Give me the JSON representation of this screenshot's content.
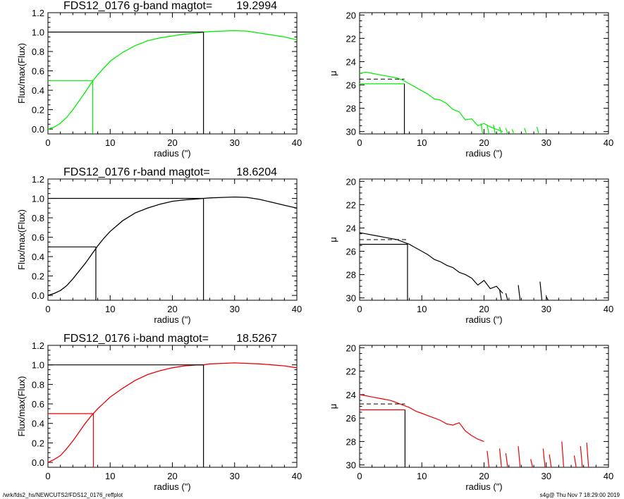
{
  "footer": {
    "path": "/wrk/fds2_hs/NEWCUTS2/FDS12_0176_reffplot",
    "stamp": "s4g@  Thu Nov  7 18:29:00 2019"
  },
  "colors": {
    "g": "#00ee00",
    "r": "#000000",
    "i": "#ee0000",
    "axis": "#000000"
  },
  "chart_data": [
    {
      "type": "line",
      "band": "g",
      "title_left": "FDS12_0176 g-band  magtot=",
      "title_value": "19.2994",
      "xlabel": "radius (\")",
      "ylabel": "Flux/max(Flux)",
      "xlim": [
        0,
        40
      ],
      "ylim": [
        -0.05,
        1.2
      ],
      "xticks": [
        0,
        10,
        20,
        30,
        40
      ],
      "yticks": [
        0.0,
        0.2,
        0.4,
        0.6,
        0.8,
        1.0,
        1.2
      ],
      "ytick_labels": [
        "0.0",
        "0.2",
        "0.4",
        "0.6",
        "0.8",
        "1.0",
        "1.2"
      ],
      "r_half": 7.2,
      "r_tot": 25.0,
      "curve": {
        "x": [
          0,
          1,
          2,
          3,
          4,
          5,
          6,
          7,
          8,
          9,
          10,
          12,
          14,
          16,
          18,
          20,
          22,
          24,
          25,
          26,
          28,
          30,
          32,
          34,
          36,
          38,
          40
        ],
        "y": [
          0.0,
          0.02,
          0.06,
          0.12,
          0.2,
          0.29,
          0.38,
          0.48,
          0.56,
          0.63,
          0.7,
          0.79,
          0.86,
          0.91,
          0.94,
          0.96,
          0.98,
          0.99,
          1.0,
          1.005,
          1.01,
          1.015,
          1.01,
          0.99,
          0.97,
          0.95,
          0.92
        ]
      }
    },
    {
      "type": "line",
      "band": "g",
      "xlabel": "radius (\")",
      "ylabel": "μ",
      "xlim": [
        0,
        40
      ],
      "ylim": [
        30.2,
        19.8
      ],
      "xticks": [
        0,
        10,
        20,
        30,
        40
      ],
      "yticks": [
        20,
        22,
        24,
        26,
        28,
        30
      ],
      "r_half": 7.2,
      "mu_half": 25.9,
      "mu_mean": 25.5,
      "profile": {
        "x": [
          0,
          1,
          2,
          3,
          4,
          5,
          6,
          7,
          8,
          9,
          10,
          11,
          12,
          13,
          14,
          15,
          16,
          17,
          18,
          19,
          20,
          21,
          22,
          23
        ],
        "y": [
          25.0,
          24.9,
          25.0,
          25.1,
          25.2,
          25.3,
          25.4,
          25.6,
          25.9,
          26.2,
          26.5,
          26.8,
          27.2,
          27.3,
          27.6,
          28.1,
          28.3,
          29.0,
          28.9,
          29.5,
          29.3,
          29.6,
          29.8,
          30.0
        ]
      },
      "spikes": {
        "x": [
          19.5,
          20.5,
          21.5,
          22.5,
          23.5,
          24.5,
          26.5,
          28.5
        ],
        "y": [
          29.3,
          29.5,
          29.4,
          29.6,
          29.7,
          29.8,
          29.7,
          29.6
        ]
      }
    },
    {
      "type": "line",
      "band": "r",
      "title_left": "FDS12_0176 r-band  magtot=",
      "title_value": "18.6204",
      "xlabel": "radius (\")",
      "ylabel": "Flux/max(Flux)",
      "xlim": [
        0,
        40
      ],
      "ylim": [
        -0.05,
        1.2
      ],
      "xticks": [
        0,
        10,
        20,
        30,
        40
      ],
      "yticks": [
        0.0,
        0.2,
        0.4,
        0.6,
        0.8,
        1.0,
        1.2
      ],
      "ytick_labels": [
        "0.0",
        "0.2",
        "0.4",
        "0.6",
        "0.8",
        "1.0",
        "1.2"
      ],
      "r_half": 7.7,
      "r_tot": 25.0,
      "curve": {
        "x": [
          0,
          1,
          2,
          3,
          4,
          5,
          6,
          7,
          8,
          9,
          10,
          12,
          14,
          16,
          18,
          20,
          22,
          24,
          25,
          26,
          28,
          30,
          32,
          34,
          36,
          38,
          40
        ],
        "y": [
          0.0,
          0.02,
          0.05,
          0.1,
          0.17,
          0.25,
          0.33,
          0.42,
          0.51,
          0.59,
          0.66,
          0.77,
          0.85,
          0.9,
          0.94,
          0.97,
          0.985,
          0.995,
          1.0,
          1.005,
          1.01,
          1.015,
          1.01,
          0.99,
          0.96,
          0.93,
          0.9
        ]
      }
    },
    {
      "type": "line",
      "band": "r",
      "xlabel": "radius (\")",
      "ylabel": "μ",
      "xlim": [
        0,
        40
      ],
      "ylim": [
        30.2,
        19.8
      ],
      "xticks": [
        0,
        10,
        20,
        30,
        40
      ],
      "yticks": [
        20,
        22,
        24,
        26,
        28,
        30
      ],
      "r_half": 7.7,
      "mu_half": 25.4,
      "mu_mean": 25.0,
      "profile": {
        "x": [
          0,
          1,
          2,
          3,
          4,
          5,
          6,
          7,
          8,
          9,
          10,
          11,
          12,
          13,
          14,
          15,
          16,
          17,
          18,
          19,
          20,
          21,
          22,
          23
        ],
        "y": [
          24.4,
          24.5,
          24.6,
          24.7,
          24.8,
          24.9,
          25.0,
          25.2,
          25.4,
          25.7,
          26.0,
          26.3,
          26.7,
          26.9,
          27.2,
          27.4,
          27.8,
          28.0,
          28.3,
          28.9,
          28.5,
          29.2,
          29.0,
          29.6
        ]
      },
      "spikes": {
        "x": [
          22.5,
          23.5,
          25.5,
          29.0,
          30.0
        ],
        "y": [
          29.3,
          29.6,
          28.9,
          28.6,
          29.9
        ]
      }
    },
    {
      "type": "line",
      "band": "i",
      "title_left": "FDS12_0176 i-band  magtot=",
      "title_value": "18.5267",
      "xlabel": "radius (\")",
      "ylabel": "Flux/max(Flux)",
      "xlim": [
        0,
        40
      ],
      "ylim": [
        -0.05,
        1.2
      ],
      "xticks": [
        0,
        10,
        20,
        30,
        40
      ],
      "yticks": [
        0.0,
        0.2,
        0.4,
        0.6,
        0.8,
        1.0,
        1.2
      ],
      "ytick_labels": [
        "0.0",
        "0.2",
        "0.4",
        "0.6",
        "0.8",
        "1.0",
        "1.2"
      ],
      "r_half": 7.3,
      "r_tot": 25.0,
      "curve": {
        "x": [
          0,
          1,
          2,
          3,
          4,
          5,
          6,
          7,
          8,
          9,
          10,
          12,
          14,
          16,
          18,
          20,
          22,
          24,
          25,
          26,
          28,
          30,
          32,
          34,
          36,
          38,
          40
        ],
        "y": [
          0.0,
          0.03,
          0.07,
          0.14,
          0.22,
          0.31,
          0.4,
          0.48,
          0.55,
          0.61,
          0.67,
          0.76,
          0.84,
          0.9,
          0.94,
          0.97,
          0.99,
          1.0,
          1.0,
          1.01,
          1.015,
          1.02,
          1.015,
          1.01,
          1.0,
          0.99,
          0.97
        ]
      }
    },
    {
      "type": "line",
      "band": "i",
      "xlabel": "radius (\")",
      "ylabel": "μ",
      "xlim": [
        0,
        40
      ],
      "ylim": [
        30.2,
        19.8
      ],
      "xticks": [
        0,
        10,
        20,
        30,
        40
      ],
      "yticks": [
        20,
        22,
        24,
        26,
        28,
        30
      ],
      "r_half": 7.3,
      "mu_half": 25.3,
      "mu_mean": 24.8,
      "profile": {
        "x": [
          0,
          1,
          2,
          3,
          4,
          5,
          6,
          7,
          8,
          9,
          10,
          11,
          12,
          13,
          14,
          15,
          16,
          17,
          18,
          19,
          20
        ],
        "y": [
          24.0,
          24.1,
          24.2,
          24.3,
          24.4,
          24.5,
          24.7,
          24.9,
          25.1,
          25.4,
          25.6,
          25.8,
          26.0,
          26.2,
          26.5,
          26.6,
          26.4,
          27.1,
          27.5,
          27.8,
          28.0
        ]
      },
      "spikes": {
        "x": [
          20.5,
          22.5,
          23.5,
          25.5,
          27.5,
          29.5,
          30.5,
          32.5,
          34.5,
          35.5,
          36.5
        ],
        "y": [
          28.8,
          28.6,
          29.0,
          28.4,
          29.5,
          28.6,
          29.1,
          28.0,
          29.2,
          28.4,
          28.1
        ]
      }
    }
  ]
}
